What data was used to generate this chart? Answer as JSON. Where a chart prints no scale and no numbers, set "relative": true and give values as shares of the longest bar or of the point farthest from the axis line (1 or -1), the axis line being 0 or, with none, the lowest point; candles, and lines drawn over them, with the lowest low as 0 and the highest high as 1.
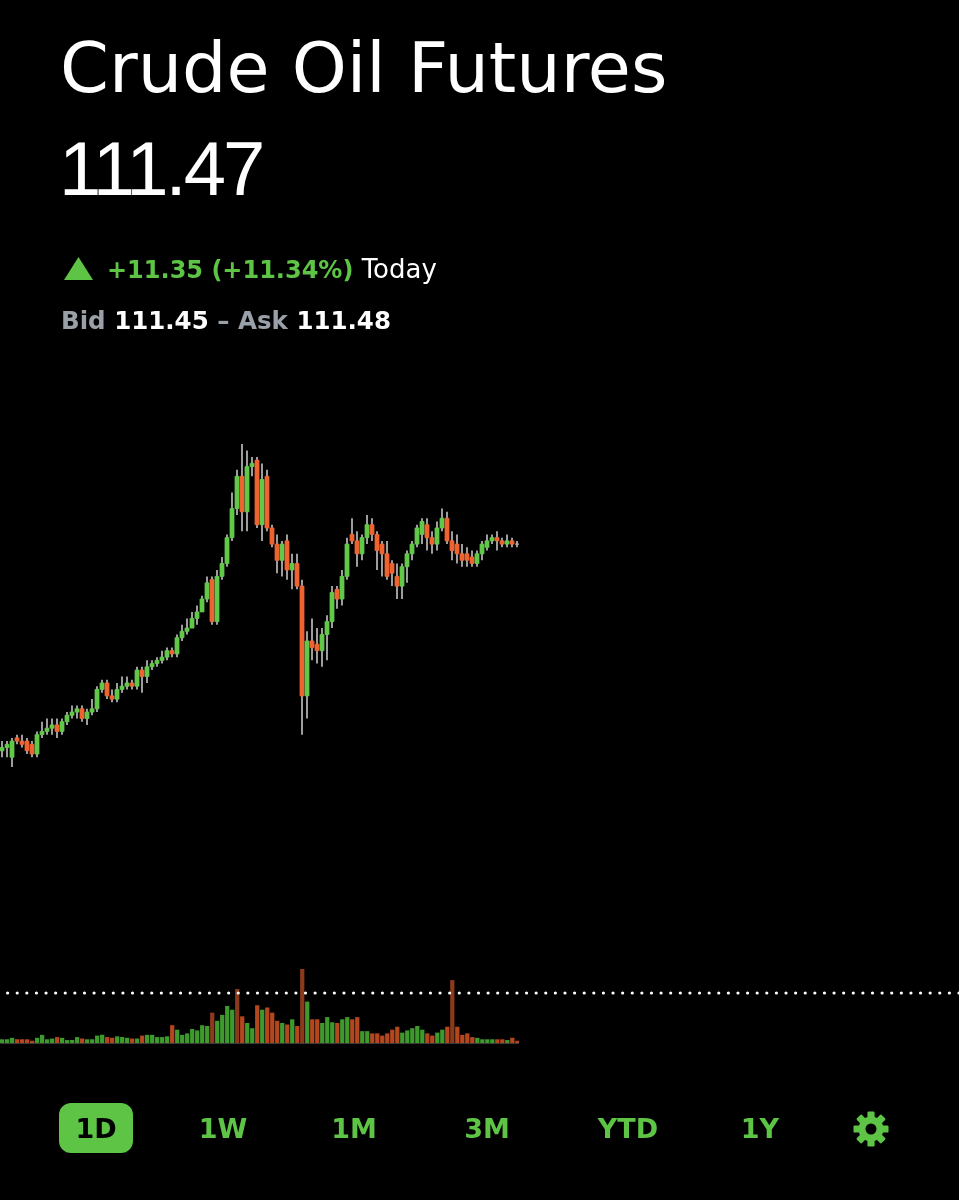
{
  "chart_data": [
    {
      "type": "candlestick",
      "title": "Crude Oil Futures",
      "subtitle": "111.47",
      "annotations": [
        "+11.35 (+11.34%)",
        "Today",
        "Bid",
        "111.45",
        "–",
        "Ask",
        "111.48",
        "1D",
        "1W",
        "1M",
        "3M",
        "YTD",
        "1Y"
      ],
      "relative": true,
      "ref_lines": [
        {
          "axis": "y",
          "value": -0.7,
          "color": "#ffffff",
          "line_style": "dotted"
        }
      ],
      "categories": [
        null,
        null,
        null,
        null,
        null,
        null,
        null,
        null,
        null,
        null,
        null,
        null,
        null,
        null,
        null,
        null,
        null,
        null,
        null,
        null,
        null,
        null,
        null,
        null,
        null,
        null,
        null,
        null,
        null,
        null,
        null,
        null,
        null,
        null,
        null,
        null,
        null,
        null,
        null,
        null,
        null,
        null,
        null,
        null,
        null,
        null,
        null,
        null,
        null,
        null,
        null,
        null,
        null,
        null,
        null,
        null,
        null,
        null,
        null,
        null,
        null,
        null,
        null,
        null,
        null,
        null,
        null,
        null,
        null,
        null,
        null,
        null,
        null,
        null,
        null,
        null,
        null,
        null,
        null,
        null,
        null,
        null,
        null,
        null,
        null,
        null,
        null,
        null,
        null,
        null,
        null,
        null,
        null,
        null,
        null,
        null,
        null,
        null,
        null,
        null,
        null,
        null,
        null,
        null,
        null,
        null,
        null,
        null,
        null,
        null,
        null,
        null,
        null,
        null,
        null,
        null,
        null,
        null,
        null,
        null,
        null,
        null,
        null,
        null,
        null,
        null,
        null,
        null,
        null,
        null,
        null,
        null,
        null,
        null,
        null,
        null,
        null,
        null,
        null,
        null,
        null,
        null,
        null,
        null,
        null,
        null,
        null,
        null,
        null,
        null,
        null,
        null,
        null,
        null,
        null,
        null,
        null,
        null,
        null,
        null,
        null,
        null,
        null,
        null,
        null,
        null,
        null,
        null,
        null,
        null,
        null,
        null,
        null,
        null,
        null,
        null,
        null,
        null,
        null,
        null,
        null,
        null,
        null,
        null,
        null,
        null,
        null,
        null,
        null,
        null,
        null,
        null
      ],
      "ohlc": [
        [
          0.05,
          0.08,
          0.03,
          0.06
        ],
        [
          0.06,
          0.08,
          0.03,
          0.07
        ],
        [
          0.03,
          0.09,
          0,
          0.08
        ],
        [
          0.09,
          0.1,
          0.07,
          0.08
        ],
        [
          0.08,
          0.1,
          0.06,
          0.07
        ],
        [
          0.08,
          0.09,
          0.04,
          0.05
        ],
        [
          0.07,
          0.08,
          0.03,
          0.04
        ],
        [
          0.04,
          0.11,
          0.03,
          0.1
        ],
        [
          0.1,
          0.14,
          0.09,
          0.11
        ],
        [
          0.11,
          0.15,
          0.1,
          0.12
        ],
        [
          0.12,
          0.15,
          0.1,
          0.13
        ],
        [
          0.13,
          0.15,
          0.09,
          0.11
        ],
        [
          0.11,
          0.15,
          0.1,
          0.14
        ],
        [
          0.14,
          0.17,
          0.13,
          0.16
        ],
        [
          0.16,
          0.19,
          0.15,
          0.17
        ],
        [
          0.17,
          0.19,
          0.15,
          0.18
        ],
        [
          0.18,
          0.19,
          0.14,
          0.15
        ],
        [
          0.15,
          0.18,
          0.13,
          0.17
        ],
        [
          0.17,
          0.21,
          0.16,
          0.18
        ],
        [
          0.18,
          0.25,
          0.17,
          0.24
        ],
        [
          0.24,
          0.27,
          0.23,
          0.26
        ],
        [
          0.26,
          0.27,
          0.21,
          0.22
        ],
        [
          0.22,
          0.24,
          0.2,
          0.21
        ],
        [
          0.21,
          0.26,
          0.2,
          0.24
        ],
        [
          0.24,
          0.28,
          0.23,
          0.25
        ],
        [
          0.25,
          0.28,
          0.24,
          0.26
        ],
        [
          0.26,
          0.27,
          0.24,
          0.25
        ],
        [
          0.25,
          0.31,
          0.24,
          0.3
        ],
        [
          0.3,
          0.31,
          0.23,
          0.28
        ],
        [
          0.28,
          0.33,
          0.26,
          0.31
        ],
        [
          0.31,
          0.33,
          0.3,
          0.32
        ],
        [
          0.32,
          0.34,
          0.31,
          0.33
        ],
        [
          0.33,
          0.36,
          0.32,
          0.34
        ],
        [
          0.34,
          0.37,
          0.33,
          0.36
        ],
        [
          0.36,
          0.37,
          0.34,
          0.35
        ],
        [
          0.35,
          0.41,
          0.34,
          0.4
        ],
        [
          0.4,
          0.44,
          0.39,
          0.42
        ],
        [
          0.42,
          0.46,
          0.41,
          0.43
        ],
        [
          0.43,
          0.48,
          0.43,
          0.46
        ],
        [
          0.46,
          0.5,
          0.44,
          0.48
        ],
        [
          0.48,
          0.53,
          0.48,
          0.52
        ],
        [
          0.52,
          0.59,
          0.51,
          0.57
        ],
        [
          0.58,
          0.59,
          0.44,
          0.45
        ],
        [
          0.45,
          0.61,
          0.44,
          0.59
        ],
        [
          0.59,
          0.65,
          0.58,
          0.63
        ],
        [
          0.63,
          0.72,
          0.62,
          0.71
        ],
        [
          0.71,
          0.85,
          0.7,
          0.8
        ],
        [
          0.8,
          0.92,
          0.78,
          0.9
        ],
        [
          0.9,
          1,
          0.73,
          0.79
        ],
        [
          0.79,
          0.98,
          0.73,
          0.93
        ],
        [
          0.93,
          0.96,
          0.9,
          0.94
        ],
        [
          0.95,
          0.96,
          0.74,
          0.75
        ],
        [
          0.75,
          0.94,
          0.7,
          0.89
        ],
        [
          0.9,
          0.92,
          0.73,
          0.74
        ],
        [
          0.74,
          0.75,
          0.68,
          0.69
        ],
        [
          0.69,
          0.72,
          0.6,
          0.64
        ],
        [
          0.64,
          0.7,
          0.59,
          0.69
        ],
        [
          0.7,
          0.72,
          0.58,
          0.61
        ],
        [
          0.61,
          0.66,
          0.55,
          0.63
        ],
        [
          0.63,
          0.66,
          0.55,
          0.56
        ],
        [
          0.56,
          0.58,
          0.1,
          0.22
        ],
        [
          0.22,
          0.42,
          0.15,
          0.39
        ],
        [
          0.39,
          0.46,
          0.33,
          0.37
        ],
        [
          0.38,
          0.43,
          0.32,
          0.36
        ],
        [
          0.36,
          0.43,
          0.31,
          0.41
        ],
        [
          0.41,
          0.47,
          0.33,
          0.45
        ],
        [
          0.45,
          0.56,
          0.43,
          0.54
        ],
        [
          0.55,
          0.56,
          0.49,
          0.52
        ],
        [
          0.52,
          0.61,
          0.5,
          0.59
        ],
        [
          0.59,
          0.71,
          0.58,
          0.69
        ],
        [
          0.72,
          0.77,
          0.69,
          0.7
        ],
        [
          0.7,
          0.73,
          0.62,
          0.66
        ],
        [
          0.66,
          0.72,
          0.64,
          0.71
        ],
        [
          0.71,
          0.78,
          0.69,
          0.75
        ],
        [
          0.75,
          0.77,
          0.7,
          0.72
        ],
        [
          0.72,
          0.73,
          0.61,
          0.67
        ],
        [
          0.69,
          0.7,
          0.59,
          0.66
        ],
        [
          0.66,
          0.7,
          0.58,
          0.59
        ],
        [
          0.63,
          0.64,
          0.56,
          0.6
        ],
        [
          0.59,
          0.63,
          0.52,
          0.56
        ],
        [
          0.56,
          0.63,
          0.52,
          0.62
        ],
        [
          0.62,
          0.67,
          0.57,
          0.66
        ],
        [
          0.66,
          0.7,
          0.64,
          0.69
        ],
        [
          0.69,
          0.75,
          0.68,
          0.74
        ],
        [
          0.72,
          0.77,
          0.69,
          0.76
        ],
        [
          0.75,
          0.77,
          0.67,
          0.71
        ],
        [
          0.71,
          0.73,
          0.66,
          0.69
        ],
        [
          0.69,
          0.76,
          0.67,
          0.74
        ],
        [
          0.74,
          0.8,
          0.73,
          0.77
        ],
        [
          0.77,
          0.79,
          0.69,
          0.7
        ],
        [
          0.7,
          0.73,
          0.64,
          0.67
        ],
        [
          0.69,
          0.72,
          0.63,
          0.66
        ],
        [
          0.66,
          0.69,
          0.62,
          0.64
        ],
        [
          0.66,
          0.68,
          0.62,
          0.64
        ],
        [
          0.65,
          0.67,
          0.62,
          0.63
        ],
        [
          0.63,
          0.67,
          0.62,
          0.66
        ],
        [
          0.66,
          0.7,
          0.64,
          0.69
        ],
        [
          0.68,
          0.72,
          0.67,
          0.7
        ],
        [
          0.7,
          0.72,
          0.69,
          0.71
        ],
        [
          0.71,
          0.73,
          0.67,
          0.7
        ],
        [
          0.7,
          0.71,
          0.68,
          0.69
        ],
        [
          0.69,
          0.72,
          0.68,
          0.7
        ],
        [
          0.7,
          0.71,
          0.68,
          0.69
        ],
        [
          0.69,
          0.7,
          0.68,
          0.69
        ],
        null,
        null,
        null,
        null,
        null,
        null,
        null,
        null,
        null,
        null,
        null,
        null,
        null,
        null,
        null,
        null,
        null,
        null,
        null,
        null,
        null,
        null,
        null,
        null,
        null,
        null,
        null,
        null,
        null,
        null,
        null,
        null,
        null,
        null,
        null,
        null,
        null,
        null,
        null,
        null,
        null,
        null,
        null,
        null,
        null,
        null,
        null,
        null,
        null,
        null,
        null,
        null,
        null,
        null,
        null,
        null,
        null,
        null,
        null,
        null,
        null,
        null,
        null,
        null,
        null,
        null,
        null,
        null,
        null,
        null,
        null,
        null,
        null,
        null,
        null,
        null,
        null,
        null,
        null,
        null,
        null,
        null,
        null,
        null,
        null,
        null,
        null,
        null
      ],
      "colors": [
        "#61c84a",
        "#61c84a",
        "#61c84a",
        "#ee6330",
        "#ee6330",
        "#ee6330",
        "#ee6330",
        "#61c84a",
        "#61c84a",
        "#61c84a",
        "#61c84a",
        "#ee6330",
        "#61c84a",
        "#61c84a",
        "#61c84a",
        "#61c84a",
        "#ee6330",
        "#61c84a",
        "#61c84a",
        "#61c84a",
        "#61c84a",
        "#ee6330",
        "#ee6330",
        "#61c84a",
        "#61c84a",
        "#61c84a",
        "#ee6330",
        "#61c84a",
        "#ee6330",
        "#61c84a",
        "#61c84a",
        "#61c84a",
        "#61c84a",
        "#61c84a",
        "#ee6330",
        "#61c84a",
        "#61c84a",
        "#61c84a",
        "#61c84a",
        "#61c84a",
        "#61c84a",
        "#61c84a",
        "#ee6330",
        "#61c84a",
        "#61c84a",
        "#61c84a",
        "#61c84a",
        "#61c84a",
        "#ee6330",
        "#61c84a",
        "#61c84a",
        "#ee6330",
        "#61c84a",
        "#ee6330",
        "#ee6330",
        "#ee6330",
        "#61c84a",
        "#ee6330",
        "#61c84a",
        "#ee6330",
        "#ee6330",
        "#61c84a",
        "#ee6330",
        "#ee6330",
        "#61c84a",
        "#61c84a",
        "#61c84a",
        "#ee6330",
        "#61c84a",
        "#61c84a",
        "#ee6330",
        "#ee6330",
        "#61c84a",
        "#61c84a",
        "#ee6330",
        "#ee6330",
        "#ee6330",
        "#ee6330",
        "#ee6330",
        "#ee6330",
        "#61c84a",
        "#61c84a",
        "#61c84a",
        "#61c84a",
        "#61c84a",
        "#ee6330",
        "#ee6330",
        "#61c84a",
        "#61c84a",
        "#ee6330",
        "#ee6330",
        "#ee6330",
        "#ee6330",
        "#ee6330",
        "#ee6330",
        "#61c84a",
        "#61c84a",
        "#61c84a",
        "#61c84a",
        "#ee6330",
        "#ee6330",
        "#61c84a",
        "#ee6330",
        "#a8a8a8",
        null,
        null,
        null,
        null,
        null,
        null,
        null,
        null,
        null,
        null,
        null,
        null,
        null,
        null,
        null,
        null,
        null,
        null,
        null,
        null,
        null,
        null,
        null,
        null,
        null,
        null,
        null,
        null,
        null,
        null,
        null,
        null,
        null,
        null,
        null,
        null,
        null,
        null,
        null,
        null,
        null,
        null,
        null,
        null,
        null,
        null,
        null,
        null,
        null,
        null,
        null,
        null,
        null,
        null,
        null,
        null,
        null,
        null,
        null,
        null,
        null,
        null,
        null,
        null,
        null,
        null,
        null,
        null,
        null,
        null,
        null,
        null,
        null,
        null,
        null,
        null,
        null,
        null,
        null,
        null,
        null,
        null,
        null,
        null,
        null,
        null,
        null,
        null
      ]
    },
    {
      "type": "bar",
      "relative": true,
      "categories": [
        null,
        null,
        null,
        null,
        null,
        null,
        null,
        null,
        null,
        null,
        null,
        null,
        null,
        null,
        null,
        null,
        null,
        null,
        null,
        null,
        null,
        null,
        null,
        null,
        null,
        null,
        null,
        null,
        null,
        null,
        null,
        null,
        null,
        null,
        null,
        null,
        null,
        null,
        null,
        null,
        null,
        null,
        null,
        null,
        null,
        null,
        null,
        null,
        null,
        null,
        null,
        null,
        null,
        null,
        null,
        null,
        null,
        null,
        null,
        null,
        null,
        null,
        null,
        null,
        null,
        null,
        null,
        null,
        null,
        null,
        null,
        null,
        null,
        null,
        null,
        null,
        null,
        null,
        null,
        null,
        null,
        null,
        null,
        null,
        null,
        null,
        null,
        null,
        null,
        null,
        null,
        null,
        null,
        null,
        null,
        null,
        null,
        null,
        null,
        null,
        null,
        null,
        null,
        null
      ],
      "values": [
        0.05,
        0.05,
        0.07,
        0.05,
        0.05,
        0.05,
        0.03,
        0.07,
        0.11,
        0.05,
        0.06,
        0.08,
        0.07,
        0.04,
        0.04,
        0.08,
        0.06,
        0.05,
        0.05,
        0.1,
        0.11,
        0.08,
        0.07,
        0.09,
        0.08,
        0.07,
        0.06,
        0.06,
        0.1,
        0.11,
        0.11,
        0.08,
        0.08,
        0.09,
        0.24,
        0.18,
        0.11,
        0.13,
        0.19,
        0.17,
        0.24,
        0.23,
        0.41,
        0.3,
        0.38,
        0.5,
        0.45,
        0.73,
        0.36,
        0.27,
        0.2,
        0.51,
        0.45,
        0.48,
        0.41,
        0.3,
        0.27,
        0.25,
        0.32,
        0.23,
        1,
        0.56,
        0.32,
        0.32,
        0.27,
        0.35,
        0.28,
        0.27,
        0.32,
        0.35,
        0.32,
        0.35,
        0.16,
        0.16,
        0.13,
        0.13,
        0.1,
        0.13,
        0.18,
        0.22,
        0.14,
        0.17,
        0.2,
        0.23,
        0.18,
        0.13,
        0.1,
        0.14,
        0.18,
        0.22,
        0.85,
        0.22,
        0.11,
        0.13,
        0.08,
        0.07,
        0.05,
        0.05,
        0.05,
        0.05,
        0.05,
        0.04,
        0.07,
        0.03
      ],
      "colors": [
        "#3f9a2d",
        "#3f9a2d",
        "#3f9a2d",
        "#b5471f",
        "#b5471f",
        "#b5471f",
        "#b5471f",
        "#3f9a2d",
        "#3f9a2d",
        "#3f9a2d",
        "#3f9a2d",
        "#b5471f",
        "#3f9a2d",
        "#3f9a2d",
        "#3f9a2d",
        "#3f9a2d",
        "#b5471f",
        "#3f9a2d",
        "#3f9a2d",
        "#3f9a2d",
        "#3f9a2d",
        "#b5471f",
        "#b5471f",
        "#3f9a2d",
        "#3f9a2d",
        "#3f9a2d",
        "#b5471f",
        "#3f9a2d",
        "#b5471f",
        "#3f9a2d",
        "#3f9a2d",
        "#3f9a2d",
        "#3f9a2d",
        "#3f9a2d",
        "#b5471f",
        "#3f9a2d",
        "#3f9a2d",
        "#3f9a2d",
        "#3f9a2d",
        "#3f9a2d",
        "#3f9a2d",
        "#3f9a2d",
        "#8b3a1c",
        "#3f9a2d",
        "#3f9a2d",
        "#3f9a2d",
        "#3f9a2d",
        "#8b3a1c",
        "#b5471f",
        "#3f9a2d",
        "#3f9a2d",
        "#b5471f",
        "#3f9a2d",
        "#b5471f",
        "#b5471f",
        "#b5471f",
        "#3f9a2d",
        "#b5471f",
        "#3f9a2d",
        "#b5471f",
        "#8b3a1c",
        "#3f9a2d",
        "#b5471f",
        "#b5471f",
        "#3f9a2d",
        "#3f9a2d",
        "#3f9a2d",
        "#b5471f",
        "#3f9a2d",
        "#3f9a2d",
        "#b5471f",
        "#b5471f",
        "#3f9a2d",
        "#3f9a2d",
        "#b5471f",
        "#b5471f",
        "#b5471f",
        "#b5471f",
        "#b5471f",
        "#b5471f",
        "#3f9a2d",
        "#3f9a2d",
        "#3f9a2d",
        "#3f9a2d",
        "#3f9a2d",
        "#b5471f",
        "#b5471f",
        "#3f9a2d",
        "#3f9a2d",
        "#b5471f",
        "#8b3a1c",
        "#b5471f",
        "#b5471f",
        "#b5471f",
        "#b5471f",
        "#3f9a2d",
        "#3f9a2d",
        "#3f9a2d",
        "#3f9a2d",
        "#b5471f",
        "#b5471f",
        "#3f9a2d",
        "#b5471f",
        "#b5471f"
      ]
    }
  ]
}
